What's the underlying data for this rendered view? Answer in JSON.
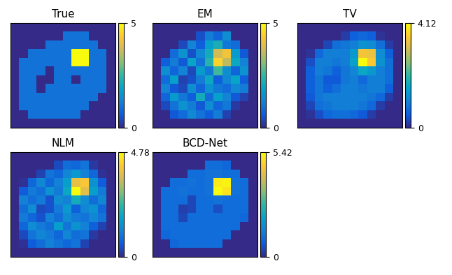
{
  "chart_data": [
    {
      "type": "heatmap",
      "title": "True",
      "tick_labels": false,
      "colorbar_range": [
        0,
        5
      ],
      "colorbar_ticks": [
        0,
        5
      ],
      "cells": [
        [
          0,
          0,
          0,
          0,
          0,
          0,
          0,
          0,
          0,
          0,
          0,
          0
        ],
        [
          0,
          0,
          0,
          0,
          0,
          0,
          1,
          1,
          1,
          0,
          0,
          0
        ],
        [
          0,
          0,
          0,
          0,
          1,
          1,
          1,
          1,
          1,
          1,
          0,
          0
        ],
        [
          0,
          0,
          1,
          1,
          1,
          1,
          1,
          5,
          5,
          1,
          1,
          0
        ],
        [
          0,
          1,
          1,
          1,
          1,
          1,
          1,
          5,
          5,
          1,
          1,
          0
        ],
        [
          0,
          1,
          1,
          1,
          0,
          1,
          1,
          1,
          1,
          1,
          1,
          0
        ],
        [
          0,
          1,
          1,
          0,
          0,
          1,
          1,
          0,
          1,
          1,
          1,
          0
        ],
        [
          0,
          1,
          1,
          0,
          1,
          1,
          1,
          1,
          1,
          1,
          1,
          0
        ],
        [
          0,
          1,
          1,
          1,
          1,
          1,
          1,
          1,
          1,
          1,
          0,
          0
        ],
        [
          0,
          1,
          1,
          1,
          1,
          1,
          1,
          1,
          1,
          0,
          0,
          0
        ],
        [
          0,
          0,
          1,
          1,
          1,
          1,
          1,
          1,
          0,
          0,
          0,
          0
        ],
        [
          0,
          0,
          0,
          0,
          0,
          0,
          0,
          0,
          0,
          0,
          0,
          0
        ]
      ]
    },
    {
      "type": "heatmap",
      "title": "EM",
      "tick_labels": false,
      "colorbar_range": [
        0,
        5
      ],
      "colorbar_ticks": [
        0,
        5
      ],
      "cells": [
        [
          0,
          0,
          0,
          0,
          0,
          0,
          0,
          0,
          0,
          0,
          0,
          0
        ],
        [
          0,
          0,
          0,
          0,
          0,
          0.5,
          1.2,
          0.8,
          1.5,
          0,
          0,
          0
        ],
        [
          0,
          0,
          0,
          0.4,
          1.3,
          0.7,
          1.8,
          2.2,
          1.1,
          0.9,
          0,
          0
        ],
        [
          0,
          0,
          0.9,
          1.6,
          0.5,
          1.4,
          2.1,
          3.8,
          4.2,
          1.7,
          0.6,
          0
        ],
        [
          0,
          0.7,
          1.2,
          0.6,
          1.9,
          1.0,
          2.4,
          4.5,
          3.6,
          2.0,
          1.3,
          0
        ],
        [
          0,
          1.5,
          0.8,
          1.3,
          0.4,
          1.7,
          1.1,
          2.6,
          1.5,
          0.8,
          1.6,
          0
        ],
        [
          0,
          0.9,
          1.8,
          0.3,
          0.5,
          1.2,
          2.0,
          0.7,
          1.4,
          1.9,
          0.7,
          0
        ],
        [
          0,
          1.3,
          0.6,
          0.4,
          1.5,
          0.8,
          1.6,
          1.1,
          0.9,
          1.4,
          1.2,
          0
        ],
        [
          0,
          0.8,
          1.7,
          1.1,
          0.7,
          2.1,
          0.9,
          1.8,
          1.3,
          0.6,
          0.3,
          0
        ],
        [
          0,
          0.4,
          1.0,
          1.6,
          1.2,
          0.6,
          1.5,
          0.8,
          1.1,
          0.2,
          0,
          0
        ],
        [
          0,
          0,
          0.6,
          0.9,
          1.4,
          1.0,
          0.7,
          1.2,
          0.3,
          0,
          0,
          0
        ],
        [
          0,
          0,
          0,
          0,
          0,
          0,
          0,
          0,
          0,
          0,
          0,
          0
        ]
      ]
    },
    {
      "type": "heatmap",
      "title": "TV",
      "tick_labels": false,
      "colorbar_range": [
        0,
        4.12
      ],
      "colorbar_ticks": [
        0,
        4.12
      ],
      "cells": [
        [
          0,
          0,
          0,
          0,
          0,
          0,
          0,
          0,
          0,
          0,
          0,
          0
        ],
        [
          0,
          0,
          0,
          0,
          0,
          0.2,
          0.6,
          0.7,
          0.6,
          0.1,
          0,
          0
        ],
        [
          0,
          0,
          0,
          0.3,
          0.8,
          0.9,
          1.0,
          1.3,
          1.2,
          0.8,
          0.2,
          0
        ],
        [
          0,
          0.1,
          0.7,
          1.0,
          1.0,
          1.0,
          1.4,
          3.5,
          3.4,
          1.2,
          0.6,
          0
        ],
        [
          0,
          0.4,
          1.0,
          1.0,
          0.9,
          1.0,
          1.5,
          4.12,
          3.6,
          1.3,
          0.8,
          0
        ],
        [
          0,
          0.6,
          1.0,
          0.9,
          0.6,
          0.9,
          1.1,
          1.6,
          1.4,
          1.0,
          0.8,
          0
        ],
        [
          0,
          0.6,
          0.9,
          0.5,
          0.5,
          0.9,
          1.0,
          0.7,
          1.0,
          1.0,
          0.8,
          0
        ],
        [
          0,
          0.6,
          0.9,
          0.6,
          0.8,
          1.0,
          1.0,
          0.9,
          1.0,
          1.0,
          0.6,
          0
        ],
        [
          0,
          0.5,
          0.9,
          1.0,
          1.0,
          1.0,
          1.0,
          1.0,
          0.9,
          0.7,
          0.2,
          0
        ],
        [
          0,
          0.3,
          0.8,
          0.9,
          1.0,
          1.0,
          1.0,
          0.9,
          0.7,
          0.2,
          0,
          0
        ],
        [
          0,
          0.1,
          0.4,
          0.7,
          0.8,
          0.8,
          0.7,
          0.5,
          0.2,
          0,
          0,
          0
        ],
        [
          0,
          0,
          0,
          0,
          0,
          0,
          0,
          0,
          0,
          0,
          0,
          0
        ]
      ]
    },
    {
      "type": "heatmap",
      "title": "NLM",
      "tick_labels": false,
      "colorbar_range": [
        0,
        4.78
      ],
      "colorbar_ticks": [
        0,
        4.78
      ],
      "cells": [
        [
          0,
          0,
          0,
          0,
          0,
          0,
          0,
          0,
          0,
          0,
          0,
          0
        ],
        [
          0,
          0,
          0,
          0,
          0,
          0.4,
          0.9,
          0.8,
          1.0,
          0.2,
          0,
          0
        ],
        [
          0,
          0,
          0,
          0.3,
          1.0,
          0.8,
          1.3,
          1.6,
          1.2,
          0.8,
          0.1,
          0
        ],
        [
          0,
          0.1,
          0.8,
          1.3,
          0.8,
          1.2,
          1.7,
          3.9,
          4.1,
          1.5,
          0.6,
          0
        ],
        [
          0,
          0.6,
          1.1,
          0.9,
          1.5,
          1.1,
          1.9,
          4.78,
          3.8,
          1.7,
          1.1,
          0
        ],
        [
          0,
          1.2,
          0.9,
          1.1,
          0.5,
          1.4,
          1.2,
          2.0,
          1.4,
          0.9,
          1.3,
          0
        ],
        [
          0,
          0.9,
          1.4,
          0.4,
          0.5,
          1.1,
          1.6,
          0.7,
          1.3,
          1.5,
          0.8,
          0
        ],
        [
          0,
          1.1,
          0.8,
          0.5,
          1.2,
          0.9,
          1.4,
          1.1,
          1.0,
          1.3,
          1.0,
          0
        ],
        [
          0,
          0.8,
          1.4,
          1.1,
          0.9,
          1.7,
          1.0,
          1.5,
          1.2,
          0.7,
          0.3,
          0
        ],
        [
          0,
          0.4,
          1.0,
          1.3,
          1.1,
          0.8,
          1.3,
          0.9,
          1.0,
          0.2,
          0,
          0
        ],
        [
          0,
          0.1,
          0.6,
          0.9,
          1.2,
          1.0,
          0.8,
          1.0,
          0.3,
          0,
          0,
          0
        ],
        [
          0,
          0,
          0,
          0,
          0,
          0,
          0,
          0,
          0,
          0,
          0,
          0
        ]
      ]
    },
    {
      "type": "heatmap",
      "title": "BCD-Net",
      "tick_labels": false,
      "colorbar_range": [
        0,
        5.42
      ],
      "colorbar_ticks": [
        0,
        5.42
      ],
      "cells": [
        [
          0,
          0,
          0,
          0,
          0,
          0,
          0,
          0,
          0,
          0,
          0,
          0
        ],
        [
          0,
          0,
          0,
          0,
          0,
          0,
          1.0,
          1.0,
          0.9,
          0,
          0,
          0
        ],
        [
          0,
          0,
          0,
          0,
          1.0,
          1.0,
          1.1,
          1.1,
          1.0,
          1.0,
          0,
          0
        ],
        [
          0,
          0,
          1.0,
          1.0,
          1.1,
          1.0,
          1.1,
          5.2,
          5.3,
          1.1,
          1.0,
          0
        ],
        [
          0,
          1.0,
          1.0,
          1.1,
          1.0,
          1.0,
          1.1,
          5.42,
          5.1,
          1.1,
          1.0,
          0
        ],
        [
          0,
          1.0,
          1.0,
          1.0,
          0.4,
          1.0,
          1.0,
          1.1,
          1.0,
          1.0,
          1.0,
          0
        ],
        [
          0,
          1.0,
          1.0,
          0.3,
          0.4,
          1.0,
          1.0,
          0.5,
          1.0,
          1.0,
          1.0,
          0
        ],
        [
          0,
          1.0,
          1.0,
          0.4,
          1.0,
          1.0,
          1.0,
          1.0,
          1.0,
          1.0,
          0.9,
          0
        ],
        [
          0,
          1.0,
          1.0,
          1.0,
          1.0,
          1.0,
          1.0,
          1.0,
          1.0,
          1.0,
          0,
          0
        ],
        [
          0,
          0.9,
          1.0,
          1.0,
          1.0,
          1.0,
          1.0,
          1.0,
          1.0,
          0,
          0,
          0
        ],
        [
          0,
          0,
          0.9,
          1.0,
          1.0,
          1.0,
          1.0,
          1.0,
          0,
          0,
          0,
          0
        ],
        [
          0,
          0,
          0,
          0,
          0,
          0,
          0,
          0,
          0,
          0,
          0,
          0
        ]
      ]
    }
  ]
}
